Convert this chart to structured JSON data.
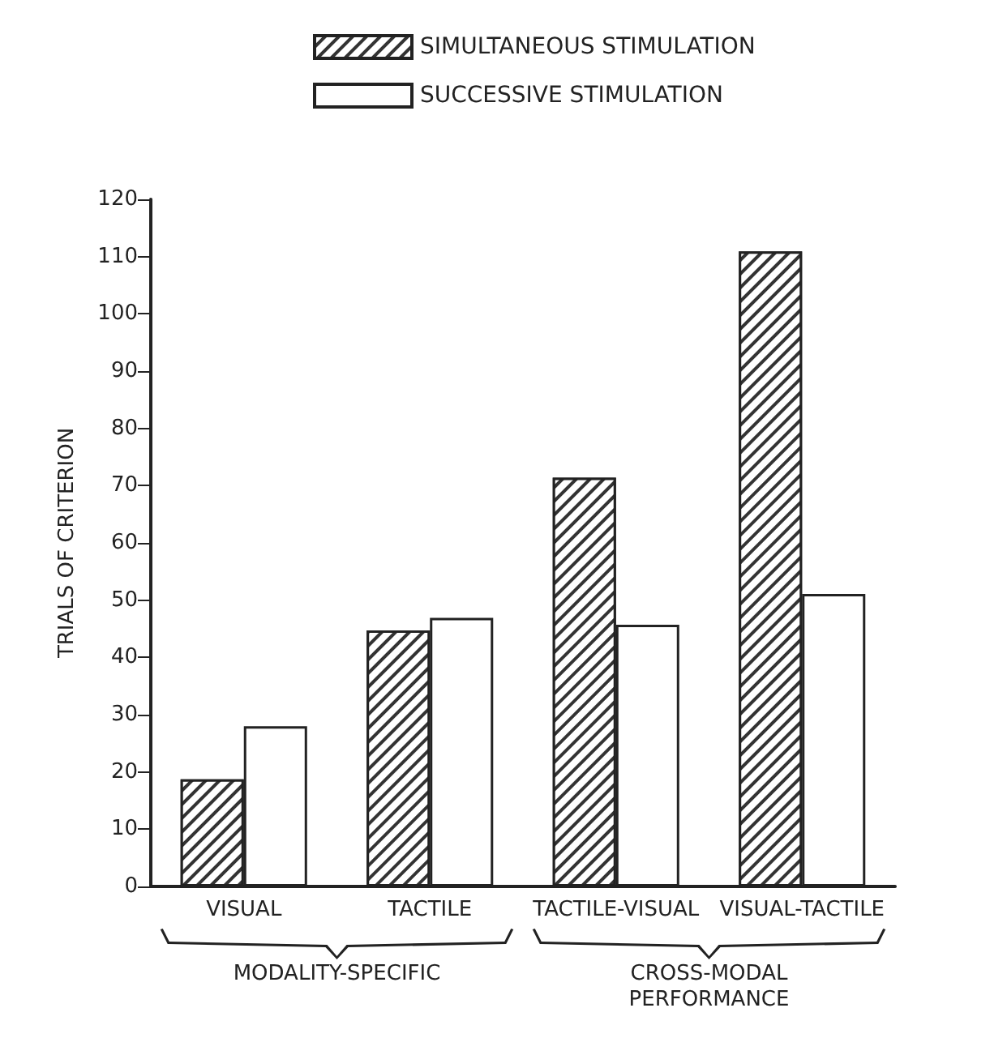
{
  "chart_data": {
    "type": "bar",
    "ylabel": "TRIALS OF CRITERION",
    "categories": [
      "VISUAL",
      "TACTILE",
      "TACTILE-VISUAL",
      "VISUAL-TACTILE"
    ],
    "series": [
      {
        "name": "SIMULTANEOUS STIMULATION",
        "color": "#333333",
        "values": [
          18.7,
          44.7,
          71.4,
          110.9
        ]
      },
      {
        "name": "SUCCESSIVE STIMULATION",
        "color": "#ffffff",
        "values": [
          28,
          46.9,
          45.7,
          51.1
        ]
      }
    ],
    "ylim": [
      0,
      120
    ],
    "yticks": [
      0,
      10,
      20,
      30,
      40,
      50,
      60,
      70,
      80,
      90,
      100,
      110,
      120
    ],
    "grid": false,
    "legend": "top",
    "annotations": [
      "MODALITY-SPECIFIC",
      "CROSS-MODAL\nPERFORMANCE"
    ]
  }
}
